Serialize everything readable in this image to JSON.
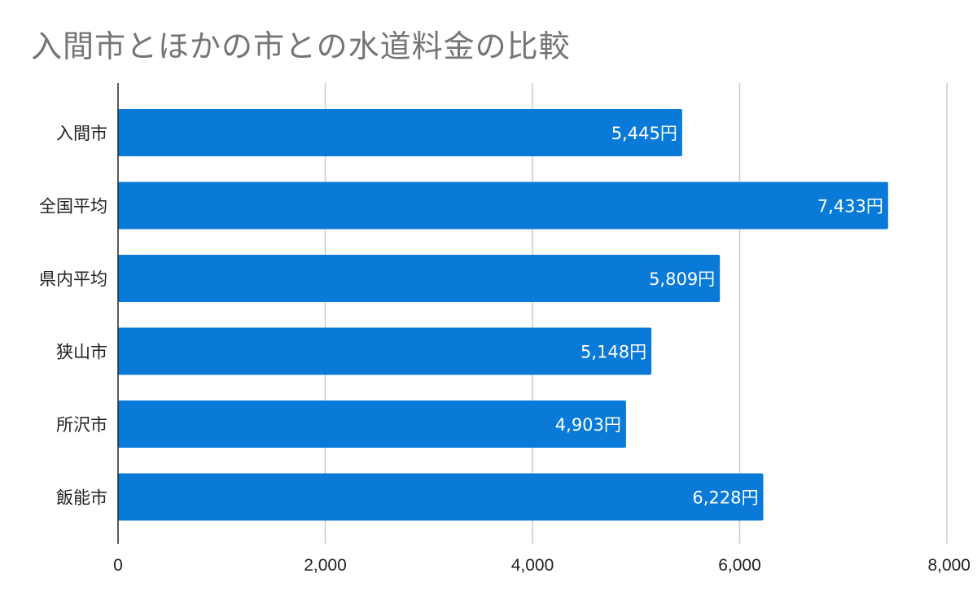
{
  "chart_data": {
    "type": "bar",
    "orientation": "horizontal",
    "title": "入間市とほかの市との水道料金の比較",
    "categories": [
      "入間市",
      "全国平均",
      "県内平均",
      "狭山市",
      "所沢市",
      "飯能市"
    ],
    "values": [
      5445,
      7433,
      5809,
      5148,
      4903,
      6228
    ],
    "data_labels": [
      "5,445円",
      "7,433円",
      "5,809円",
      "5,148円",
      "4,903円",
      "6,228円"
    ],
    "x_ticks": [
      0,
      2000,
      4000,
      6000,
      8000
    ],
    "x_tick_labels": [
      "0",
      "2,000",
      "4,000",
      "6,000",
      "8,000"
    ],
    "xlim": [
      0,
      8000
    ],
    "xlabel": "",
    "ylabel": "",
    "grid": true,
    "legend": "none",
    "bar_color": "#0a7ad9"
  }
}
